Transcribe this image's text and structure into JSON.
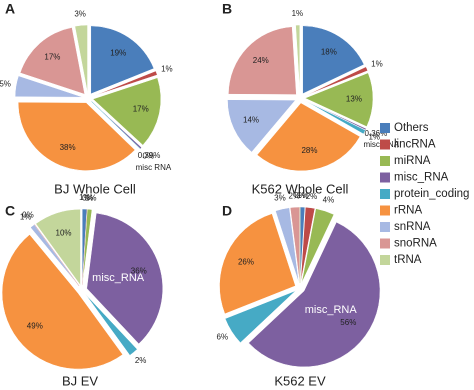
{
  "chart_data": [
    {
      "type": "pie",
      "panel": "A",
      "title": "BJ Whole Cell",
      "annotation": "misc RNA",
      "categories": [
        "Others",
        "lincRNA",
        "miRNA",
        "misc_RNA",
        "protein_coding",
        "rRNA",
        "snRNA",
        "snoRNA",
        "tRNA"
      ],
      "values": [
        19,
        1,
        17,
        0.39,
        0,
        38,
        5,
        17,
        3
      ],
      "value_labels": [
        "19%",
        "1%",
        "17%",
        "0.39%",
        "0%",
        "38%",
        "5%",
        "17%",
        "3%"
      ],
      "colors": [
        "#4a7ebb",
        "#be4b48",
        "#98b954",
        "#7d60a0",
        "#46aac5",
        "#f69240",
        "#a7b9e3",
        "#d99694",
        "#c3d69b"
      ]
    },
    {
      "type": "pie",
      "panel": "B",
      "title": "K562 Whole Cell",
      "annotation": "misc RNA",
      "categories": [
        "Others",
        "lincRNA",
        "miRNA",
        "misc_RNA",
        "protein_coding",
        "rRNA",
        "snRNA",
        "snoRNA",
        "tRNA"
      ],
      "values": [
        18,
        1,
        13,
        0.36,
        1,
        28,
        14,
        24,
        1
      ],
      "value_labels": [
        "18%",
        "1%",
        "13%",
        "0.36%",
        "1%",
        "28%",
        "14%",
        "24%",
        "1%"
      ],
      "colors": [
        "#4a7ebb",
        "#be4b48",
        "#98b954",
        "#7d60a0",
        "#46aac5",
        "#f69240",
        "#a7b9e3",
        "#d99694",
        "#c3d69b"
      ]
    },
    {
      "type": "pie",
      "panel": "C",
      "title": "BJ EV",
      "annotation": "misc_RNA",
      "categories": [
        "Others",
        "lincRNA",
        "miRNA",
        "misc_RNA",
        "protein_coding",
        "rRNA",
        "snRNA",
        "snoRNA",
        "tRNA"
      ],
      "values": [
        1,
        0,
        1,
        36,
        2,
        49,
        1,
        0,
        10
      ],
      "value_labels": [
        "1%",
        "0%",
        "1%",
        "36%",
        "2%",
        "49%",
        "1%",
        "0%",
        "10%"
      ],
      "colors": [
        "#4a7ebb",
        "#be4b48",
        "#98b954",
        "#7d60a0",
        "#46aac5",
        "#f69240",
        "#a7b9e3",
        "#d99694",
        "#c3d69b"
      ]
    },
    {
      "type": "pie",
      "panel": "D",
      "title": "K562 EV",
      "annotation": "misc_RNA",
      "categories": [
        "Others",
        "lincRNA",
        "miRNA",
        "misc_RNA",
        "protein_coding",
        "rRNA",
        "snRNA",
        "snoRNA",
        "tRNA"
      ],
      "values": [
        1,
        2,
        4,
        56,
        6,
        26,
        3,
        2,
        0
      ],
      "value_labels": [
        "1%",
        "2%",
        "4%",
        "56%",
        "6%",
        "26%",
        "3%",
        "2%",
        "0%"
      ],
      "colors": [
        "#4a7ebb",
        "#be4b48",
        "#98b954",
        "#7d60a0",
        "#46aac5",
        "#f69240",
        "#a7b9e3",
        "#d99694",
        "#c3d69b"
      ]
    }
  ]
}
